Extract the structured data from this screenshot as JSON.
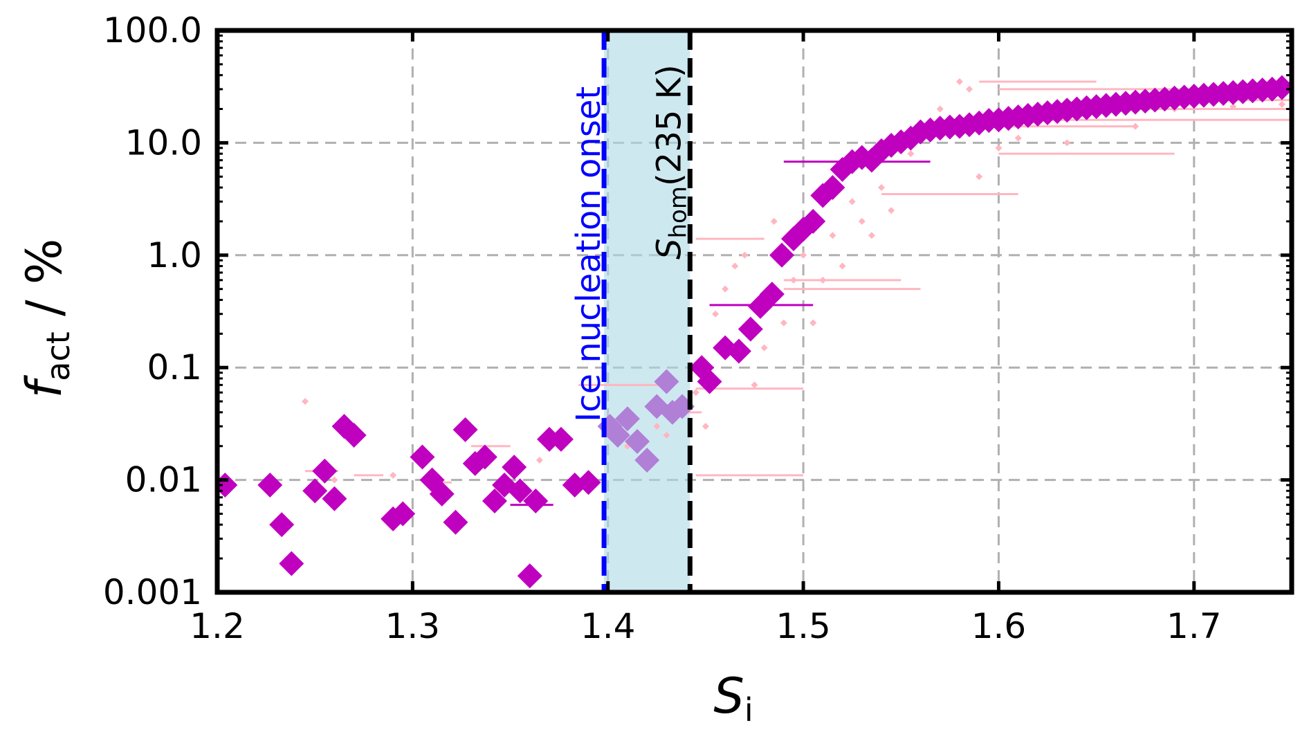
{
  "chart_data": {
    "type": "scatter",
    "xlabel": "S",
    "xlabel_sub": "i",
    "ylabel": "f",
    "ylabel_sub": "act",
    "ylabel_suffix": " / %",
    "x_scale": "linear",
    "y_scale": "log",
    "xlim": [
      1.2,
      1.75
    ],
    "ylim": [
      0.001,
      100
    ],
    "grid": true,
    "x_ticks": [
      1.2,
      1.3,
      1.4,
      1.5,
      1.6,
      1.7
    ],
    "x_tick_labels": [
      "1.2",
      "1.3",
      "1.4",
      "1.5",
      "1.6",
      "1.7"
    ],
    "y_ticks": [
      0.001,
      0.01,
      0.1,
      1,
      10,
      100
    ],
    "y_tick_labels": [
      "0.001",
      "0.01",
      "0.1",
      "1.0",
      "10.0",
      "100.0"
    ],
    "colors": {
      "main": "#bf00bf",
      "faint": "#ffb6c1",
      "shaded_points": "#b07fd6",
      "band": "#add8e6",
      "onset_line": "#0000ff",
      "hom_line": "#000000",
      "grid": "#b0b0b0"
    },
    "shaded_band": {
      "x0": 1.398,
      "x1": 1.442
    },
    "vlines": [
      {
        "x": 1.398,
        "color": "#0000ff",
        "label": "Ice nucleation onset"
      },
      {
        "x": 1.442,
        "color": "#000000",
        "label_main": "S",
        "label_sub": "hom",
        "label_rest": "(235 K)"
      }
    ],
    "series": [
      {
        "style": "large diamonds",
        "points": [
          [
            1.204,
            0.009
          ],
          [
            1.227,
            0.009
          ],
          [
            1.233,
            0.004
          ],
          [
            1.238,
            0.0018
          ],
          [
            1.25,
            0.008
          ],
          [
            1.255,
            0.012
          ],
          [
            1.26,
            0.0068
          ],
          [
            1.265,
            0.03
          ],
          [
            1.27,
            0.025
          ],
          [
            1.29,
            0.0045
          ],
          [
            1.295,
            0.005
          ],
          [
            1.305,
            0.016
          ],
          [
            1.31,
            0.01
          ],
          [
            1.315,
            0.0075
          ],
          [
            1.322,
            0.0042
          ],
          [
            1.327,
            0.028
          ],
          [
            1.332,
            0.014
          ],
          [
            1.337,
            0.016
          ],
          [
            1.342,
            0.0065
          ],
          [
            1.347,
            0.009
          ],
          [
            1.352,
            0.013
          ],
          [
            1.355,
            0.008
          ],
          [
            1.36,
            0.0014
          ],
          [
            1.363,
            0.0065
          ],
          [
            1.37,
            0.023
          ],
          [
            1.376,
            0.023
          ],
          [
            1.383,
            0.009
          ],
          [
            1.39,
            0.0095
          ],
          [
            1.448,
            0.1
          ],
          [
            1.452,
            0.075
          ],
          [
            1.46,
            0.15
          ],
          [
            1.467,
            0.14
          ],
          [
            1.473,
            0.22
          ],
          [
            1.478,
            0.35
          ],
          [
            1.484,
            0.45
          ],
          [
            1.489,
            1.0
          ],
          [
            1.495,
            1.4
          ],
          [
            1.5,
            1.7
          ],
          [
            1.505,
            2.0
          ],
          [
            1.51,
            3.4
          ],
          [
            1.515,
            4.0
          ],
          [
            1.52,
            5.8
          ],
          [
            1.525,
            6.8
          ],
          [
            1.53,
            7.4
          ],
          [
            1.535,
            7.0
          ],
          [
            1.54,
            8.5
          ],
          [
            1.545,
            9.5
          ],
          [
            1.55,
            10.2
          ],
          [
            1.555,
            11.0
          ],
          [
            1.56,
            12.5
          ],
          [
            1.565,
            13.0
          ],
          [
            1.57,
            13.5
          ],
          [
            1.575,
            13.8
          ],
          [
            1.58,
            14.0
          ],
          [
            1.585,
            14.5
          ],
          [
            1.59,
            15.0
          ],
          [
            1.595,
            15.8
          ],
          [
            1.6,
            16.0
          ],
          [
            1.605,
            16.5
          ],
          [
            1.61,
            17.0
          ],
          [
            1.615,
            17.5
          ],
          [
            1.62,
            18.0
          ],
          [
            1.625,
            18.5
          ],
          [
            1.63,
            19.0
          ],
          [
            1.635,
            19.5
          ],
          [
            1.64,
            20.0
          ],
          [
            1.645,
            20.5
          ],
          [
            1.65,
            21.0
          ],
          [
            1.655,
            21.5
          ],
          [
            1.66,
            22.0
          ],
          [
            1.665,
            22.5
          ],
          [
            1.67,
            23.0
          ],
          [
            1.675,
            23.5
          ],
          [
            1.68,
            24.0
          ],
          [
            1.685,
            24.5
          ],
          [
            1.69,
            25.0
          ],
          [
            1.695,
            25.5
          ],
          [
            1.7,
            26.0
          ],
          [
            1.705,
            26.5
          ],
          [
            1.71,
            27.0
          ],
          [
            1.715,
            27.5
          ],
          [
            1.72,
            28.0
          ],
          [
            1.725,
            28.5
          ],
          [
            1.73,
            29.0
          ],
          [
            1.735,
            29.5
          ],
          [
            1.74,
            30.0
          ],
          [
            1.745,
            31.0
          ]
        ]
      },
      {
        "style": "large diamonds inside band",
        "points": [
          [
            1.401,
            0.03
          ],
          [
            1.405,
            0.025
          ],
          [
            1.41,
            0.035
          ],
          [
            1.415,
            0.022
          ],
          [
            1.42,
            0.015
          ],
          [
            1.425,
            0.045
          ],
          [
            1.43,
            0.075
          ],
          [
            1.433,
            0.04
          ],
          [
            1.438,
            0.045
          ]
        ]
      },
      {
        "style": "small faint dots",
        "points": [
          [
            1.245,
            0.05
          ],
          [
            1.26,
            0.01
          ],
          [
            1.29,
            0.011
          ],
          [
            1.35,
            0.012
          ],
          [
            1.365,
            0.015
          ],
          [
            1.41,
            0.02
          ],
          [
            1.425,
            0.03
          ],
          [
            1.43,
            0.025
          ],
          [
            1.445,
            0.06
          ],
          [
            1.45,
            0.03
          ],
          [
            1.455,
            0.3
          ],
          [
            1.46,
            0.5
          ],
          [
            1.465,
            0.8
          ],
          [
            1.47,
            1.0
          ],
          [
            1.475,
            0.07
          ],
          [
            1.48,
            0.15
          ],
          [
            1.485,
            2.0
          ],
          [
            1.49,
            0.25
          ],
          [
            1.495,
            0.6
          ],
          [
            1.5,
            1.0
          ],
          [
            1.505,
            0.25
          ],
          [
            1.51,
            0.6
          ],
          [
            1.515,
            1.5
          ],
          [
            1.52,
            0.8
          ],
          [
            1.525,
            3.0
          ],
          [
            1.53,
            2.0
          ],
          [
            1.535,
            1.5
          ],
          [
            1.54,
            4.0
          ],
          [
            1.545,
            2.5
          ],
          [
            1.55,
            12.0
          ],
          [
            1.555,
            8.0
          ],
          [
            1.56,
            15.0
          ],
          [
            1.57,
            20.0
          ],
          [
            1.58,
            35.0
          ],
          [
            1.585,
            30.0
          ],
          [
            1.59,
            5.0
          ],
          [
            1.6,
            9.0
          ],
          [
            1.61,
            11.0
          ],
          [
            1.625,
            22.0
          ],
          [
            1.635,
            10.0
          ],
          [
            1.65,
            18.0
          ],
          [
            1.67,
            14.0
          ],
          [
            1.69,
            20.0
          ],
          [
            1.72,
            21.0
          ],
          [
            1.745,
            22.0
          ]
        ]
      },
      {
        "style": "horizontal error bars",
        "segments": [
          [
            1.245,
            1.262,
            0.012
          ],
          [
            1.27,
            1.285,
            0.011
          ],
          [
            1.31,
            1.32,
            0.0095
          ],
          [
            1.33,
            1.35,
            0.02
          ],
          [
            1.35,
            1.372,
            0.006
          ],
          [
            1.385,
            1.43,
            0.07
          ],
          [
            1.43,
            1.448,
            0.04
          ],
          [
            1.445,
            1.48,
            1.4
          ],
          [
            1.445,
            1.5,
            0.065
          ],
          [
            1.445,
            1.5,
            0.011
          ],
          [
            1.452,
            1.505,
            0.36
          ],
          [
            1.49,
            1.565,
            6.8
          ],
          [
            1.49,
            1.55,
            0.6
          ],
          [
            1.49,
            1.56,
            0.5
          ],
          [
            1.54,
            1.61,
            3.5
          ],
          [
            1.56,
            1.67,
            14.0
          ],
          [
            1.6,
            1.69,
            8.0
          ],
          [
            1.62,
            1.75,
            16.0
          ],
          [
            1.65,
            1.75,
            20.0
          ],
          [
            1.69,
            1.75,
            24.0
          ],
          [
            1.59,
            1.65,
            35.0
          ],
          [
            1.6,
            1.7,
            30.0
          ]
        ]
      }
    ]
  }
}
